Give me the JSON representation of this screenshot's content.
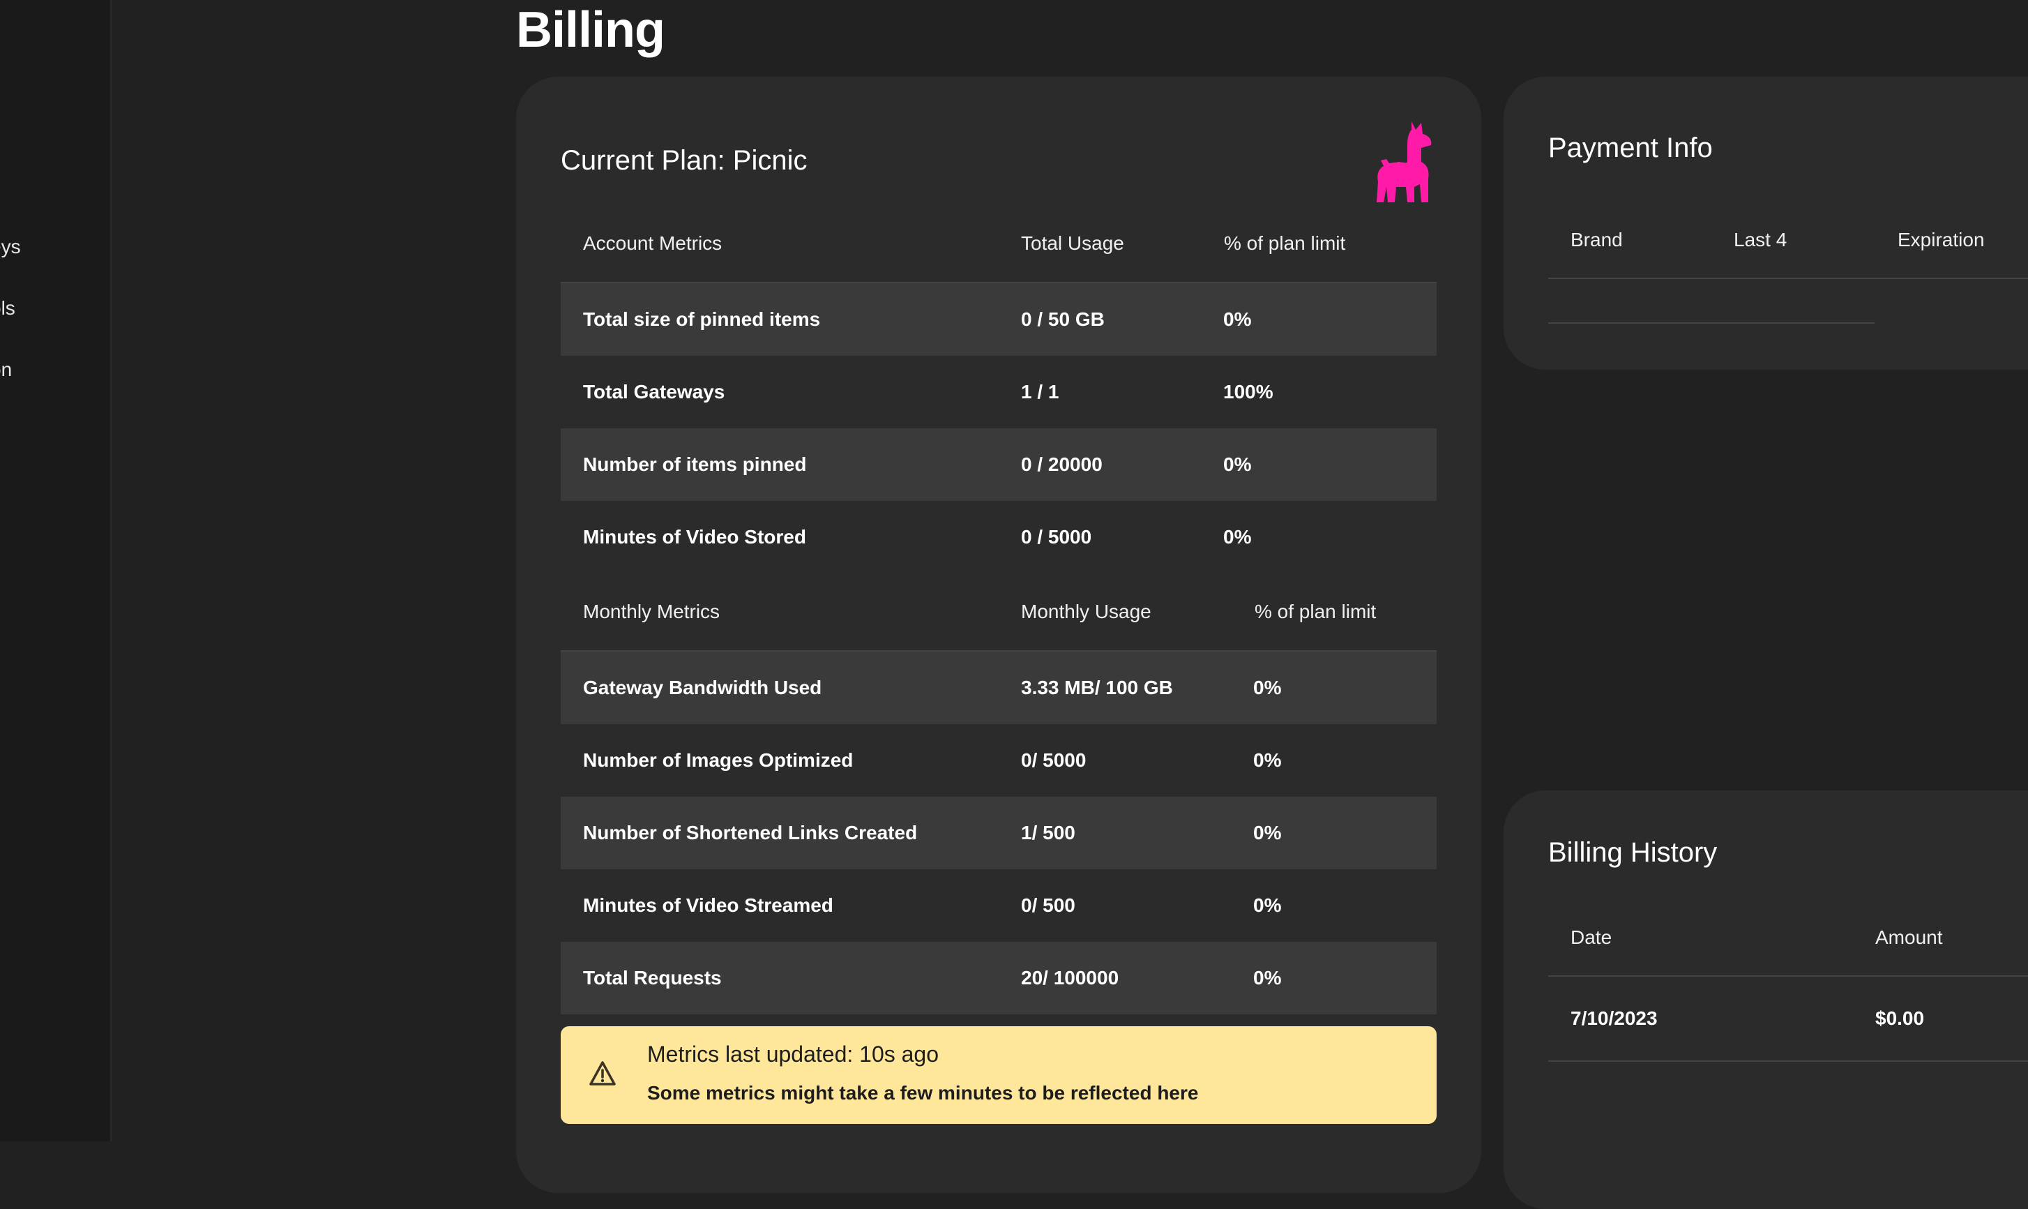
{
  "sidebar": {
    "items": [
      {
        "label": "eys"
      },
      {
        "label": "ols"
      },
      {
        "label": "on"
      }
    ]
  },
  "page": {
    "title": "Billing"
  },
  "plan": {
    "title": "Current Plan: Picnic",
    "logo_icon": "llama-icon",
    "logo_color": "#ff1aa8",
    "account_header": {
      "metric": "Account Metrics",
      "usage": "Total Usage",
      "percent": "% of plan limit"
    },
    "account_rows": [
      {
        "metric": "Total size of pinned items",
        "usage": "0 / 50 GB",
        "percent": "0%"
      },
      {
        "metric": "Total Gateways",
        "usage": "1 / 1",
        "percent": "100%"
      },
      {
        "metric": "Number of items pinned",
        "usage": "0 / 20000",
        "percent": "0%"
      },
      {
        "metric": "Minutes of Video Stored",
        "usage": "0 / 5000",
        "percent": "0%"
      }
    ],
    "monthly_header": {
      "metric": "Monthly Metrics",
      "usage": "Monthly Usage",
      "percent": "% of plan limit"
    },
    "monthly_rows": [
      {
        "metric": "Gateway Bandwidth Used",
        "usage": "3.33 MB/ 100 GB",
        "percent": "0%"
      },
      {
        "metric": "Number of Images Optimized",
        "usage": "0/ 5000",
        "percent": "0%"
      },
      {
        "metric": "Number of Shortened Links Created",
        "usage": "1/ 500",
        "percent": "0%"
      },
      {
        "metric": "Minutes of Video Streamed",
        "usage": "0/ 500",
        "percent": "0%"
      },
      {
        "metric": "Total Requests",
        "usage": "20/ 100000",
        "percent": "0%"
      }
    ],
    "alert": {
      "icon": "warning-icon",
      "title": "Metrics last updated: 10s ago",
      "message": "Some metrics might take a few minutes to be reflected here",
      "color": "#fee79b"
    }
  },
  "payment": {
    "title": "Payment Info",
    "columns": {
      "brand": "Brand",
      "last4": "Last 4",
      "expiration": "Expiration"
    }
  },
  "history": {
    "title": "Billing History",
    "columns": {
      "date": "Date",
      "amount": "Amount"
    },
    "rows": [
      {
        "date": "7/10/2023",
        "amount": "$0.00"
      }
    ]
  }
}
